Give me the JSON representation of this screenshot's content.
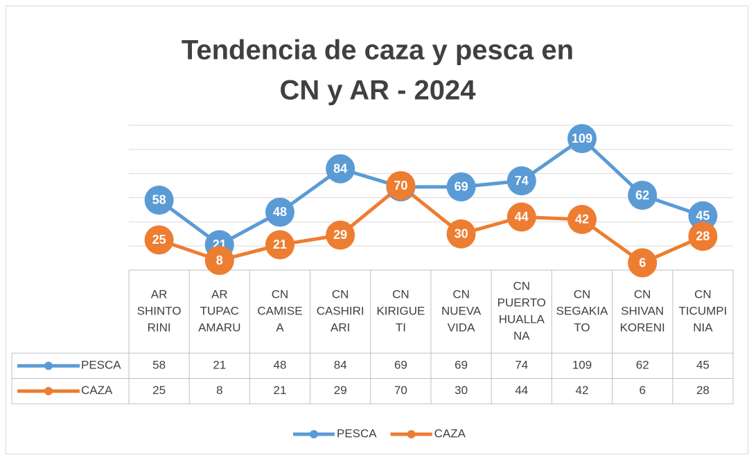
{
  "chart_data": {
    "type": "line",
    "title": [
      "Tendencia de caza y pesca en",
      "CN y AR - 2024"
    ],
    "categories": [
      [
        "AR",
        "SHINTO",
        "RINI"
      ],
      [
        "AR",
        "TUPAC",
        "AMARU"
      ],
      [
        "CN",
        "CAMISE",
        "A"
      ],
      [
        "CN",
        "CASHIRI",
        "ARI"
      ],
      [
        "CN",
        "KIRIGUE",
        "TI"
      ],
      [
        "CN",
        "NUEVA",
        "VIDA"
      ],
      [
        "CN",
        "PUERTO",
        "HUALLA",
        "NA"
      ],
      [
        "CN",
        "SEGAKIA",
        "TO"
      ],
      [
        "CN",
        "SHIVAN",
        "KORENI"
      ],
      [
        "CN",
        "TICUMPI",
        "NIA"
      ]
    ],
    "series": [
      {
        "name": "PESCA",
        "color": "#5b9bd5",
        "values": [
          58,
          21,
          48,
          84,
          69,
          69,
          74,
          109,
          62,
          45
        ]
      },
      {
        "name": "CAZA",
        "color": "#ed7d31",
        "values": [
          25,
          8,
          21,
          29,
          70,
          30,
          44,
          42,
          6,
          28
        ]
      }
    ],
    "ylim": [
      0,
      120
    ],
    "yticks": [
      0,
      20,
      40,
      60,
      80,
      100,
      120
    ],
    "grid": true,
    "legend": "bottom"
  }
}
